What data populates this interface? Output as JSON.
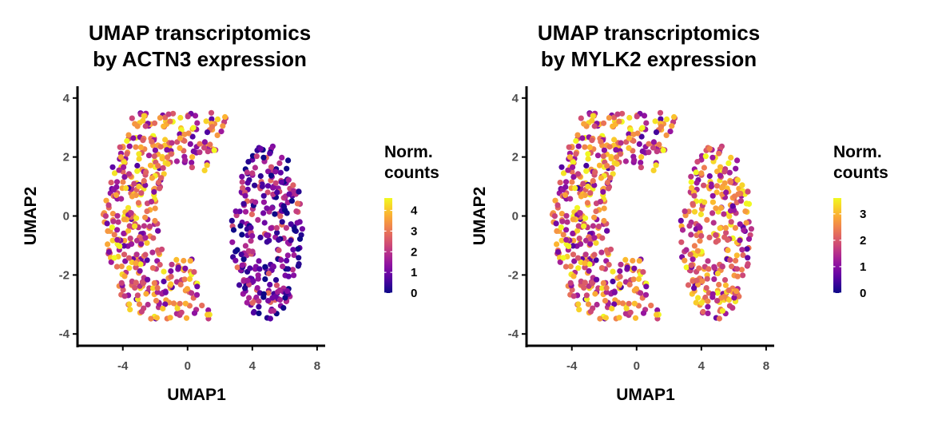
{
  "colors": {
    "scale": [
      "#0d0887",
      "#5c01a6",
      "#9c179e",
      "#cc4778",
      "#ed7953",
      "#fdb42f",
      "#f0f921"
    ],
    "axis": "#000000",
    "tick_label": "#4d4d4d",
    "background": "#ffffff"
  },
  "chart_data": [
    {
      "type": "scatter",
      "title": [
        "UMAP transcriptomics",
        "by ACTN3 expression"
      ],
      "xlabel": "UMAP1",
      "ylabel": "UMAP2",
      "xlim": [
        -6.8,
        8.5
      ],
      "ylim": [
        -4.4,
        4.4
      ],
      "xticks": [
        -4,
        0,
        4,
        8
      ],
      "yticks": [
        -4,
        -2,
        0,
        2,
        4
      ],
      "grid": false,
      "legend": {
        "title": [
          "Norm.",
          "counts"
        ],
        "placement": "right",
        "ticks": [
          0,
          1,
          2,
          3,
          4
        ],
        "min": 0,
        "max": 4.6
      },
      "color_variable": "ACTN3 normalized counts",
      "clusters": [
        {
          "region": "left arc",
          "x_range": [
            -6.2,
            1.6
          ],
          "y_range": [
            -3.5,
            3.5
          ],
          "value_range": [
            0.5,
            4.6
          ],
          "typical": 2.8
        },
        {
          "region": "right blob",
          "x_range": [
            2.7,
            7.1
          ],
          "y_range": [
            -3.5,
            2.5
          ],
          "value_range": [
            0,
            3.0
          ],
          "typical": 0.8
        }
      ]
    },
    {
      "type": "scatter",
      "title": [
        "UMAP transcriptomics",
        "by MYLK2 expression"
      ],
      "xlabel": "UMAP1",
      "ylabel": "UMAP2",
      "xlim": [
        -6.8,
        8.5
      ],
      "ylim": [
        -4.4,
        4.4
      ],
      "xticks": [
        -4,
        0,
        4,
        8
      ],
      "yticks": [
        -4,
        -2,
        0,
        2,
        4
      ],
      "grid": false,
      "legend": {
        "title": [
          "Norm.",
          "counts"
        ],
        "placement": "right",
        "ticks": [
          0,
          1,
          2,
          3
        ],
        "min": 0,
        "max": 3.6
      },
      "color_variable": "MYLK2 normalized counts",
      "clusters": [
        {
          "region": "left arc",
          "x_range": [
            -6.2,
            1.6
          ],
          "y_range": [
            -3.5,
            3.5
          ],
          "value_range": [
            0.3,
            3.6
          ],
          "typical": 2.3
        },
        {
          "region": "right blob",
          "x_range": [
            2.7,
            7.1
          ],
          "y_range": [
            -3.5,
            2.5
          ],
          "value_range": [
            0.5,
            3.6
          ],
          "typical": 2.4
        }
      ]
    }
  ]
}
